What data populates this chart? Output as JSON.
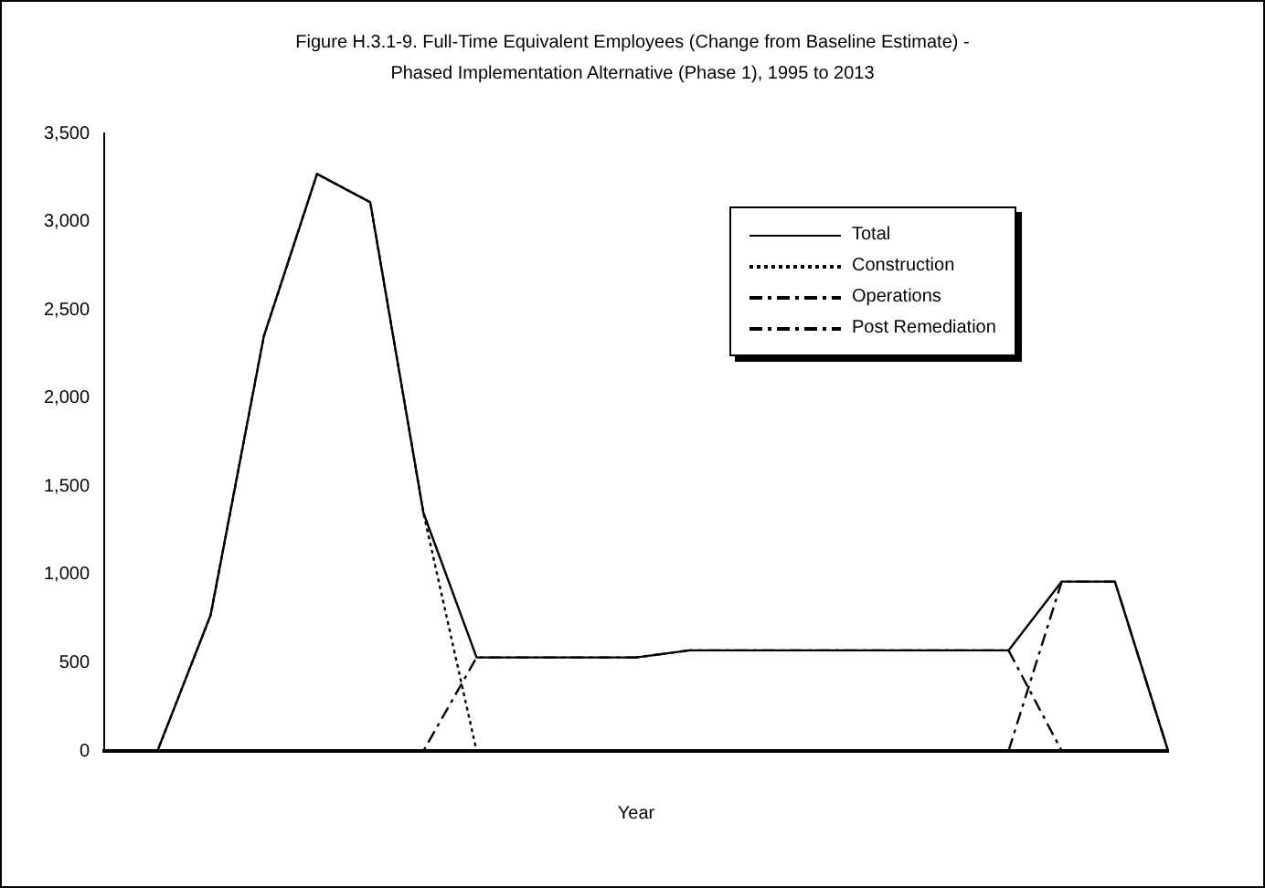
{
  "chart_data": {
    "type": "line",
    "title": [
      "Figure H.3.1-9. Full-Time Equivalent Employees (Change from Baseline Estimate) -",
      "Phased Implementation Alternative (Phase 1), 1995 to 2013"
    ],
    "xlabel": "Year",
    "categories": [
      null,
      null,
      null,
      null,
      null,
      null,
      null,
      null,
      null,
      null,
      null,
      null,
      null,
      null,
      null,
      null,
      null,
      null,
      null,
      null,
      null
    ],
    "series": [
      {
        "name": "Total",
        "color": "#000000",
        "line_style": "solid",
        "values": [
          0,
          0,
          770,
          2350,
          3270,
          3110,
          1350,
          530,
          530,
          530,
          530,
          570,
          570,
          570,
          570,
          570,
          570,
          570,
          960,
          960,
          0
        ]
      },
      {
        "name": "Construction",
        "color": "#000000",
        "line_style": "dotted",
        "values": [
          0,
          0,
          770,
          2350,
          3270,
          3110,
          1350,
          0,
          0,
          0,
          0,
          0,
          0,
          0,
          0,
          0,
          0,
          0,
          0,
          0,
          0
        ]
      },
      {
        "name": "Operations",
        "color": "#000000",
        "line_style": "dashed",
        "values": [
          0,
          0,
          0,
          0,
          0,
          0,
          0,
          530,
          530,
          530,
          530,
          570,
          570,
          570,
          570,
          570,
          570,
          570,
          0,
          0,
          0
        ]
      },
      {
        "name": "Post Remediation",
        "color": "#000000",
        "line_style": "dashed",
        "values": [
          0,
          0,
          0,
          0,
          0,
          0,
          0,
          0,
          0,
          0,
          0,
          0,
          0,
          0,
          0,
          0,
          0,
          0,
          960,
          960,
          0
        ]
      }
    ],
    "ylim": [
      0,
      3500
    ],
    "yticks": [
      0,
      500,
      {
        "value": 1000,
        "label": "1,000"
      },
      {
        "value": 1500,
        "label": "1,500"
      },
      {
        "value": 2000,
        "label": "2,000"
      },
      {
        "value": 2500,
        "label": "2,500"
      },
      {
        "value": 3000,
        "label": "3,000"
      },
      {
        "value": 3500,
        "label": "3,500"
      }
    ],
    "tick_labels": "y",
    "grid": false,
    "marker": "none",
    "legend": "top right"
  }
}
